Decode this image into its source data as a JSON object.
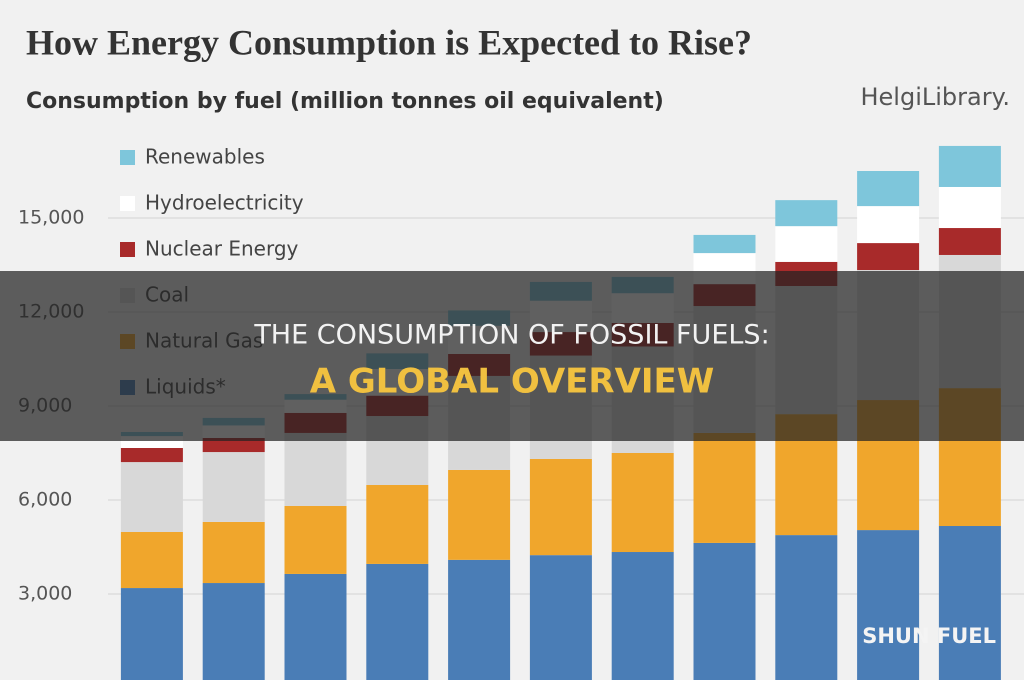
{
  "chart_data": {
    "type": "stacked-bar",
    "title": "How Energy Consumption is Expected to Rise?",
    "subtitle": "Consumption by fuel (million tonnes oil equivalent)",
    "logo": "HelgiLibrary.",
    "banner_line1": "THE CONSUMPTION OF FOSSIL FUELS:",
    "banner_line2": "A GLOBAL OVERVIEW",
    "watermark": "SHUN FUEL",
    "categories": [
      null,
      null,
      null,
      null,
      null,
      null,
      null,
      null,
      null,
      null,
      null
    ],
    "series": [
      {
        "name": "Liquids*",
        "color": "#4a7db6",
        "values": [
          3190,
          3350,
          3640,
          3960,
          4090,
          4240,
          4340,
          4630,
          4880,
          5040,
          5170
        ]
      },
      {
        "name": "Natural Gas",
        "color": "#f0a62c",
        "values": [
          1790,
          1950,
          2170,
          2520,
          2870,
          3070,
          3160,
          3510,
          3860,
          4150,
          4400
        ]
      },
      {
        "name": "Coal",
        "color": "#d8d8d8",
        "values": [
          2230,
          2230,
          2330,
          2200,
          3000,
          3300,
          3400,
          4050,
          4090,
          4150,
          4250
        ]
      },
      {
        "name": "Nuclear Energy",
        "color": "#a82a2a",
        "values": [
          450,
          450,
          640,
          650,
          700,
          750,
          750,
          700,
          770,
          860,
          860
        ]
      },
      {
        "name": "Hydroelectricity",
        "color": "#ffffff",
        "values": [
          380,
          400,
          420,
          850,
          900,
          1000,
          950,
          990,
          1140,
          1180,
          1310
        ]
      },
      {
        "name": "Renewables",
        "color": "#7ec6db",
        "values": [
          130,
          240,
          180,
          500,
          490,
          600,
          520,
          580,
          830,
          1120,
          1310
        ]
      }
    ],
    "ylim": [
      0,
      18000
    ],
    "yticks": [
      {
        "value": 3000,
        "label": "3,000"
      },
      {
        "value": 6000,
        "label": "6,000"
      },
      {
        "value": 9000,
        "label": "9,000"
      },
      {
        "value": 12000,
        "label": "12,000"
      },
      {
        "value": 15000,
        "label": "15,000"
      }
    ],
    "grid": true
  }
}
